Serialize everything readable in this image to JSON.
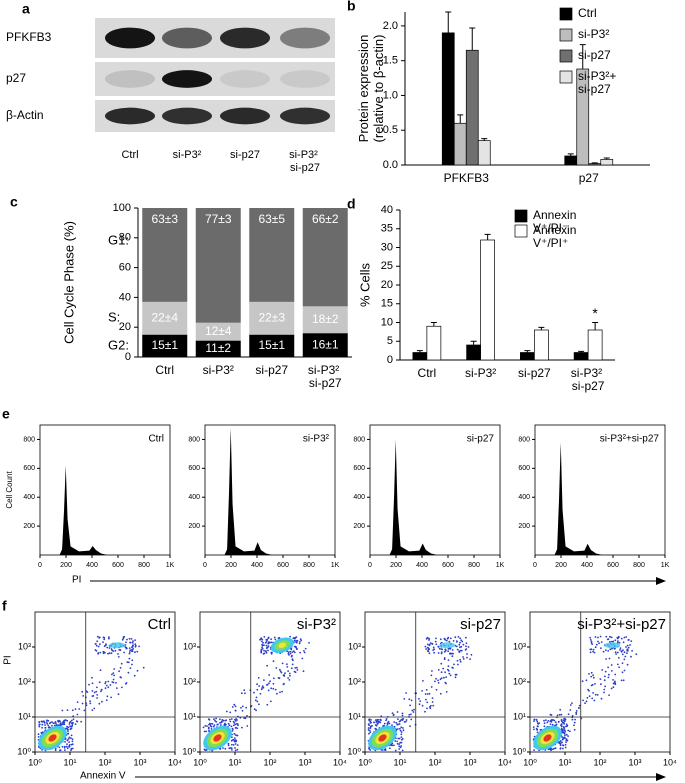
{
  "panels": {
    "a": {
      "label": "a",
      "rows": [
        "PFKFB3",
        "p27",
        "β-Actin"
      ],
      "lanes": [
        "Ctrl",
        "si-P3²",
        "si-p27",
        "si-P3² si-p27"
      ]
    },
    "e": {
      "label": "e",
      "titles": [
        "Ctrl",
        "si-P3²",
        "si-p27",
        "si-P3²+si-p27"
      ],
      "ylabel": "Cell Count",
      "xlabel": "PI",
      "xlim": [
        0,
        1000
      ],
      "ylim": [
        0,
        900
      ],
      "xticks": [
        0,
        200,
        400,
        600,
        800,
        {
          "value": 1000,
          "label": "1K"
        }
      ],
      "yticks": [
        200,
        400,
        600,
        800
      ]
    },
    "f": {
      "label": "f",
      "titles": [
        "Ctrl",
        "si-P3²",
        "si-p27",
        "si-P3²+si-p27"
      ],
      "ylabel": "PI",
      "xlabel": "Annexin V",
      "xlim": [
        1,
        10000
      ],
      "ylim": [
        1,
        10000
      ],
      "xticks": [
        {
          "value": 1,
          "label": "10⁰"
        },
        {
          "value": 10,
          "label": "10¹"
        },
        {
          "value": 100,
          "label": "10²"
        },
        {
          "value": 1000,
          "label": "10³"
        },
        {
          "value": 10000,
          "label": "10⁴"
        }
      ],
      "yticks": [
        {
          "value": 1,
          "label": "10⁰"
        },
        {
          "value": 10,
          "label": "10¹"
        },
        {
          "value": 100,
          "label": "10²"
        },
        {
          "value": 1000,
          "label": "10³"
        }
      ],
      "log": true
    }
  },
  "chart_data": [
    {
      "label": "b",
      "type": "bar",
      "ylabel": [
        "Protein expression",
        "(relative to β-actin)"
      ],
      "categories": [
        "PFKFB3",
        "p27"
      ],
      "series": [
        {
          "name": "Ctrl",
          "color": "#000000",
          "values": [
            1.9,
            0.13
          ],
          "errors": [
            0.3,
            0.03
          ]
        },
        {
          "name": "si-P3²",
          "color": "#bdbdbd",
          "values": [
            0.6,
            1.38
          ],
          "errors": [
            0.12,
            0.35
          ]
        },
        {
          "name": "si-p27",
          "color": "#707070",
          "values": [
            1.65,
            0.02
          ],
          "errors": [
            0.32,
            0.01
          ]
        },
        {
          "name": "si-P3²+ si-p27",
          "color": "#e4e4e4",
          "values": [
            0.35,
            0.08
          ],
          "errors": [
            0.03,
            0.02
          ]
        }
      ],
      "ylim": [
        0,
        2.2
      ],
      "yticks": [
        {
          "value": 0,
          "label": "0.0"
        },
        {
          "value": 0.5,
          "label": "0.5"
        },
        {
          "value": 1,
          "label": "1.0"
        },
        {
          "value": 1.5,
          "label": "1.5"
        },
        {
          "value": 2,
          "label": "2.0"
        }
      ],
      "legend": "upper right"
    },
    {
      "label": "c",
      "type": "stacked_bar",
      "ylabel": [
        "Cell Cycle Phase (%)"
      ],
      "categories": [
        "Ctrl",
        "si-P3²",
        "si-p27",
        "si-P3² si-p27"
      ],
      "series": [
        {
          "name": "G2:",
          "color": "#000000",
          "values": [
            15,
            11,
            15,
            16
          ],
          "value_labels": [
            "15±1",
            "11±2",
            "15±1",
            "16±1"
          ]
        },
        {
          "name": "S:",
          "color": "#c6c6c6",
          "values": [
            22,
            12,
            22,
            18
          ],
          "value_labels": [
            "22±4",
            "12±4",
            "22±3",
            "18±2"
          ]
        },
        {
          "name": "G1:",
          "color": "#6b6b6b",
          "values": [
            63,
            77,
            63,
            66
          ],
          "value_labels": [
            "63±3",
            "77±3",
            "63±5",
            "66±2"
          ]
        }
      ],
      "ylim": [
        0,
        100
      ],
      "yticks": [
        0,
        20,
        40,
        60,
        80,
        100
      ]
    },
    {
      "label": "d",
      "type": "bar",
      "ylabel": [
        "% Cells"
      ],
      "categories": [
        "Ctrl",
        "si-P3²",
        "si-p27",
        "si-P3² si-p27"
      ],
      "series": [
        {
          "name": "Annexin V⁺/PI⁻",
          "color": "#000000",
          "values": [
            2,
            4,
            2,
            2
          ],
          "errors": [
            0.5,
            1,
            0.5,
            0.3
          ]
        },
        {
          "name": "Annexin V⁺/PI⁺",
          "color": "#ffffff",
          "values": [
            9,
            32,
            8,
            8
          ],
          "errors": [
            1,
            1.5,
            0.7,
            2
          ]
        }
      ],
      "annotation": "*",
      "ylim": [
        0,
        40
      ],
      "yticks": [
        0,
        5,
        10,
        15,
        20,
        25,
        30,
        35,
        40
      ],
      "legend": "upper right"
    }
  ]
}
